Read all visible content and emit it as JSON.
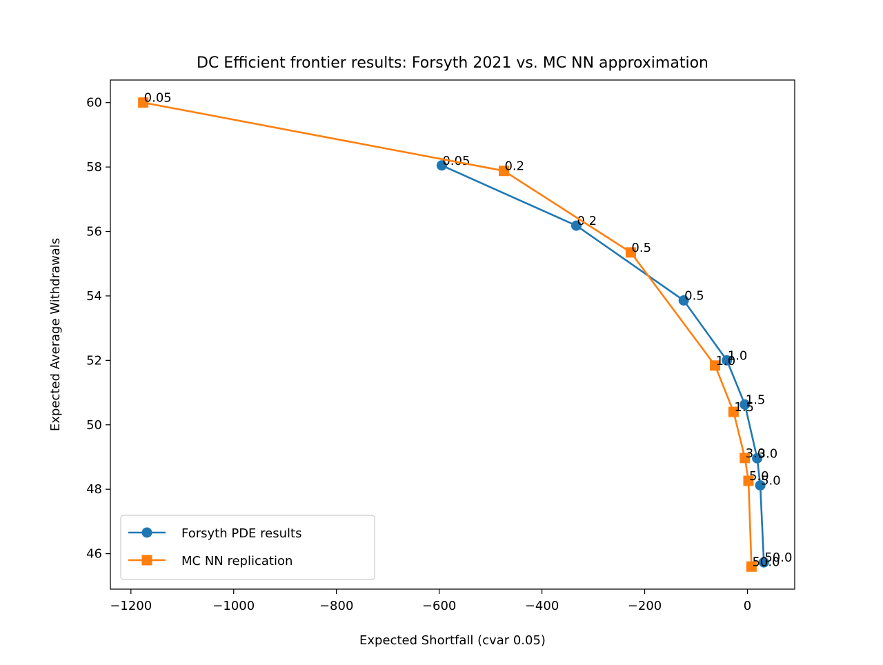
{
  "chart_data": {
    "type": "line",
    "title": "DC Efficient frontier results: Forsyth 2021 vs. MC NN approximation",
    "xlabel": "Expected Shortfall (cvar 0.05)",
    "ylabel": "Expected Average Withdrawals",
    "xlim": [
      -1240,
      92
    ],
    "ylim": [
      44.9,
      60.7
    ],
    "xticks": [
      -1200,
      -1000,
      -800,
      -600,
      -400,
      -200,
      0
    ],
    "xtick_labels": [
      "−1200",
      "−1000",
      "−800",
      "−600",
      "−400",
      "−200",
      "0"
    ],
    "yticks": [
      46,
      48,
      50,
      52,
      54,
      56,
      58,
      60
    ],
    "ytick_labels": [
      "46",
      "48",
      "50",
      "52",
      "54",
      "56",
      "58",
      "60"
    ],
    "grid": false,
    "legend_position": "lower-left",
    "series": [
      {
        "name": "Forsyth PDE results",
        "color": "#1f77b4",
        "marker": "circle",
        "x": [
          -595,
          -333,
          -124,
          -40,
          -5,
          19,
          25,
          32
        ],
        "y": [
          58.05,
          56.18,
          53.86,
          52.0,
          50.63,
          48.96,
          48.12,
          45.73
        ],
        "point_labels": [
          "0.05",
          "0.2",
          "0.5",
          "1.0",
          "1.5",
          "3.0",
          "5.0",
          "50.0"
        ]
      },
      {
        "name": "MC NN replication",
        "color": "#ff7f0e",
        "marker": "square",
        "x": [
          -1176,
          -474,
          -227,
          -63,
          -27,
          -5,
          2,
          8
        ],
        "y": [
          60.0,
          57.88,
          55.35,
          51.84,
          50.4,
          48.97,
          48.26,
          45.6
        ],
        "point_labels": [
          "0.05",
          "0.2",
          "0.5",
          "1.0",
          "1.5",
          "3.0",
          "5.0",
          "50.0"
        ]
      }
    ]
  }
}
